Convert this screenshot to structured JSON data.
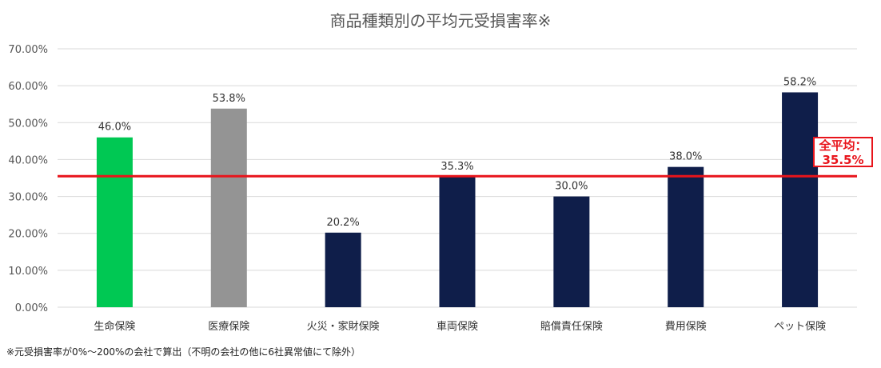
{
  "title": "商品種類別の平均元受損害率※",
  "footnote": "※元受損害率が0%～200%の会社で算出（不明の会社の他に6社異常値にて除外）",
  "average_label": {
    "line1": "全平均：",
    "line2": "35.5%"
  },
  "colors": {
    "green": "#00c853",
    "gray": "#949494",
    "navy": "#0f1e4a",
    "average_line": "#e8141b",
    "grid": "#d9d9d9"
  },
  "chart_data": {
    "type": "bar",
    "title": "商品種類別の平均元受損害率※",
    "categories": [
      "生命保険",
      "医療保険",
      "火災・家財保険",
      "車両保険",
      "賠償責任保険",
      "費用保険",
      "ペット保険"
    ],
    "values": [
      46.0,
      53.8,
      20.2,
      35.3,
      30.0,
      38.0,
      58.2
    ],
    "data_labels": [
      "46.0%",
      "53.8%",
      "20.2%",
      "35.3%",
      "30.0%",
      "38.0%",
      "58.2%"
    ],
    "bar_colors": [
      "#00c853",
      "#949494",
      "#0f1e4a",
      "#0f1e4a",
      "#0f1e4a",
      "#0f1e4a",
      "#0f1e4a"
    ],
    "y_ticks": [
      "0.00%",
      "10.00%",
      "20.00%",
      "30.00%",
      "40.00%",
      "50.00%",
      "60.00%",
      "70.00%"
    ],
    "ylim": [
      0,
      70
    ],
    "grid": true,
    "average": 35.5
  }
}
